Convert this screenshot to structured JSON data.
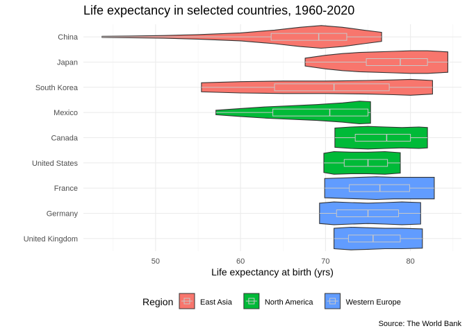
{
  "chart_data": {
    "type": "violin",
    "title": "Life expectancy in selected countries, 1960-2020",
    "xlabel": "Life expectancy at birth (yrs)",
    "ylabel": "",
    "caption": "Source: The World Bank",
    "xlim": [
      41.5,
      86
    ],
    "xticks": [
      50,
      60,
      70,
      80
    ],
    "grid": true,
    "legend": {
      "title": "Region",
      "position": "bottom",
      "entries": [
        {
          "name": "East Asia",
          "color": "#F8766D"
        },
        {
          "name": "North America",
          "color": "#00BA38"
        },
        {
          "name": "Western Europe",
          "color": "#619CFF"
        }
      ]
    },
    "categories": [
      "China",
      "Japan",
      "South Korea",
      "Mexico",
      "Canada",
      "United States",
      "France",
      "Germany",
      "United Kingdom"
    ],
    "series": [
      {
        "country": "China",
        "region": "East Asia",
        "min": 43.7,
        "max": 76.6,
        "q1": 63.6,
        "median": 69.2,
        "q3": 72.5,
        "density": [
          [
            43.7,
            0.05
          ],
          [
            47,
            0.08
          ],
          [
            51,
            0.12
          ],
          [
            55,
            0.2
          ],
          [
            60,
            0.35
          ],
          [
            64,
            0.6
          ],
          [
            67,
            0.85
          ],
          [
            69.5,
            1.0
          ],
          [
            72,
            0.85
          ],
          [
            74.5,
            0.6
          ],
          [
            76.6,
            0.4
          ]
        ]
      },
      {
        "country": "Japan",
        "region": "East Asia",
        "min": 67.6,
        "max": 84.4,
        "q1": 74.8,
        "median": 78.8,
        "q3": 82.0,
        "density": [
          [
            67.6,
            0.35
          ],
          [
            70,
            0.6
          ],
          [
            72,
            0.75
          ],
          [
            74,
            0.85
          ],
          [
            76,
            0.9
          ],
          [
            78,
            0.95
          ],
          [
            80,
            1.0
          ],
          [
            82,
            1.0
          ],
          [
            84.4,
            0.9
          ]
        ]
      },
      {
        "country": "South Korea",
        "region": "East Asia",
        "min": 55.4,
        "max": 82.6,
        "q1": 64.0,
        "median": 71.0,
        "q3": 77.5,
        "density": [
          [
            55.4,
            0.4
          ],
          [
            60,
            0.5
          ],
          [
            65,
            0.55
          ],
          [
            70,
            0.55
          ],
          [
            75,
            0.6
          ],
          [
            78,
            0.65
          ],
          [
            80,
            0.7
          ],
          [
            82.6,
            0.6
          ]
        ]
      },
      {
        "country": "Mexico",
        "region": "North America",
        "min": 57.1,
        "max": 75.3,
        "q1": 63.8,
        "median": 70.5,
        "q3": 75.0,
        "density": [
          [
            57.1,
            0.2
          ],
          [
            60,
            0.35
          ],
          [
            63,
            0.5
          ],
          [
            66,
            0.6
          ],
          [
            69,
            0.7
          ],
          [
            72,
            0.85
          ],
          [
            74,
            1.0
          ],
          [
            75.3,
            0.95
          ]
        ]
      },
      {
        "country": "Canada",
        "region": "North America",
        "min": 71.1,
        "max": 82.0,
        "q1": 73.5,
        "median": 77.2,
        "q3": 80.0,
        "density": [
          [
            71.1,
            0.85
          ],
          [
            73,
            0.95
          ],
          [
            75,
            1.0
          ],
          [
            77,
            0.95
          ],
          [
            79,
            0.9
          ],
          [
            81,
            0.95
          ],
          [
            82,
            0.9
          ]
        ]
      },
      {
        "country": "United States",
        "region": "North America",
        "min": 69.8,
        "max": 78.8,
        "q1": 72.2,
        "median": 75.0,
        "q3": 77.3,
        "density": [
          [
            69.8,
            0.85
          ],
          [
            71,
            1.0
          ],
          [
            73,
            0.95
          ],
          [
            75,
            0.95
          ],
          [
            77,
            1.0
          ],
          [
            78.8,
            0.9
          ]
        ]
      },
      {
        "country": "France",
        "region": "Western Europe",
        "min": 69.9,
        "max": 82.8,
        "q1": 72.8,
        "median": 76.4,
        "q3": 79.9,
        "density": [
          [
            69.9,
            0.85
          ],
          [
            72,
            0.9
          ],
          [
            74,
            0.95
          ],
          [
            76,
            1.0
          ],
          [
            78,
            0.95
          ],
          [
            80,
            0.95
          ],
          [
            82.8,
            0.95
          ]
        ]
      },
      {
        "country": "Germany",
        "region": "Western Europe",
        "min": 69.3,
        "max": 81.2,
        "q1": 71.3,
        "median": 75.0,
        "q3": 78.6,
        "density": [
          [
            69.3,
            0.9
          ],
          [
            71,
            1.0
          ],
          [
            73,
            0.95
          ],
          [
            75,
            0.9
          ],
          [
            77,
            0.95
          ],
          [
            79,
            1.0
          ],
          [
            81.2,
            0.95
          ]
        ]
      },
      {
        "country": "United Kingdom",
        "region": "Western Europe",
        "min": 71.0,
        "max": 81.4,
        "q1": 72.7,
        "median": 75.6,
        "q3": 78.8,
        "density": [
          [
            71,
            0.9
          ],
          [
            73,
            1.0
          ],
          [
            75,
            0.95
          ],
          [
            77,
            0.9
          ],
          [
            79,
            0.9
          ],
          [
            81.4,
            0.85
          ]
        ]
      }
    ]
  }
}
